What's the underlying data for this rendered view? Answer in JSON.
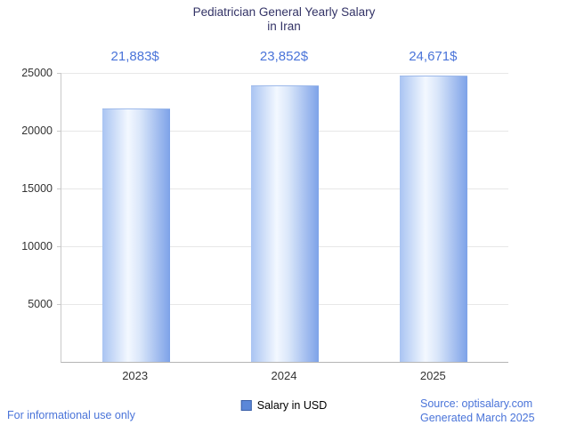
{
  "title": {
    "line1": "Pediatrician General Yearly Salary",
    "line2": "in Iran"
  },
  "chart_data": {
    "type": "bar",
    "title": "Pediatrician General Yearly Salary in Iran",
    "categories": [
      "2023",
      "2024",
      "2025"
    ],
    "values": [
      21883,
      23852,
      24671
    ],
    "value_labels": [
      "21,883$",
      "23,852$",
      "24,671$"
    ],
    "xlabel": "",
    "ylabel": "",
    "ylim": [
      0,
      25000
    ],
    "yticks": [
      5000,
      10000,
      15000,
      20000,
      25000
    ],
    "grid": true,
    "legend": {
      "label": "Salary in USD",
      "position": "bottom"
    }
  },
  "footer": {
    "left": "For informational use only",
    "source": "Source: optisalary.com",
    "generated": "Generated March 2025"
  },
  "colors": {
    "accent_text": "#4a74d9",
    "title_color": "#333366",
    "bar_main": "#7da2e8",
    "bar_light": "#f3f8ff",
    "grid": "#e7e7e7",
    "axis_text": "#333333",
    "legend_swatch": "#5b87d8"
  }
}
